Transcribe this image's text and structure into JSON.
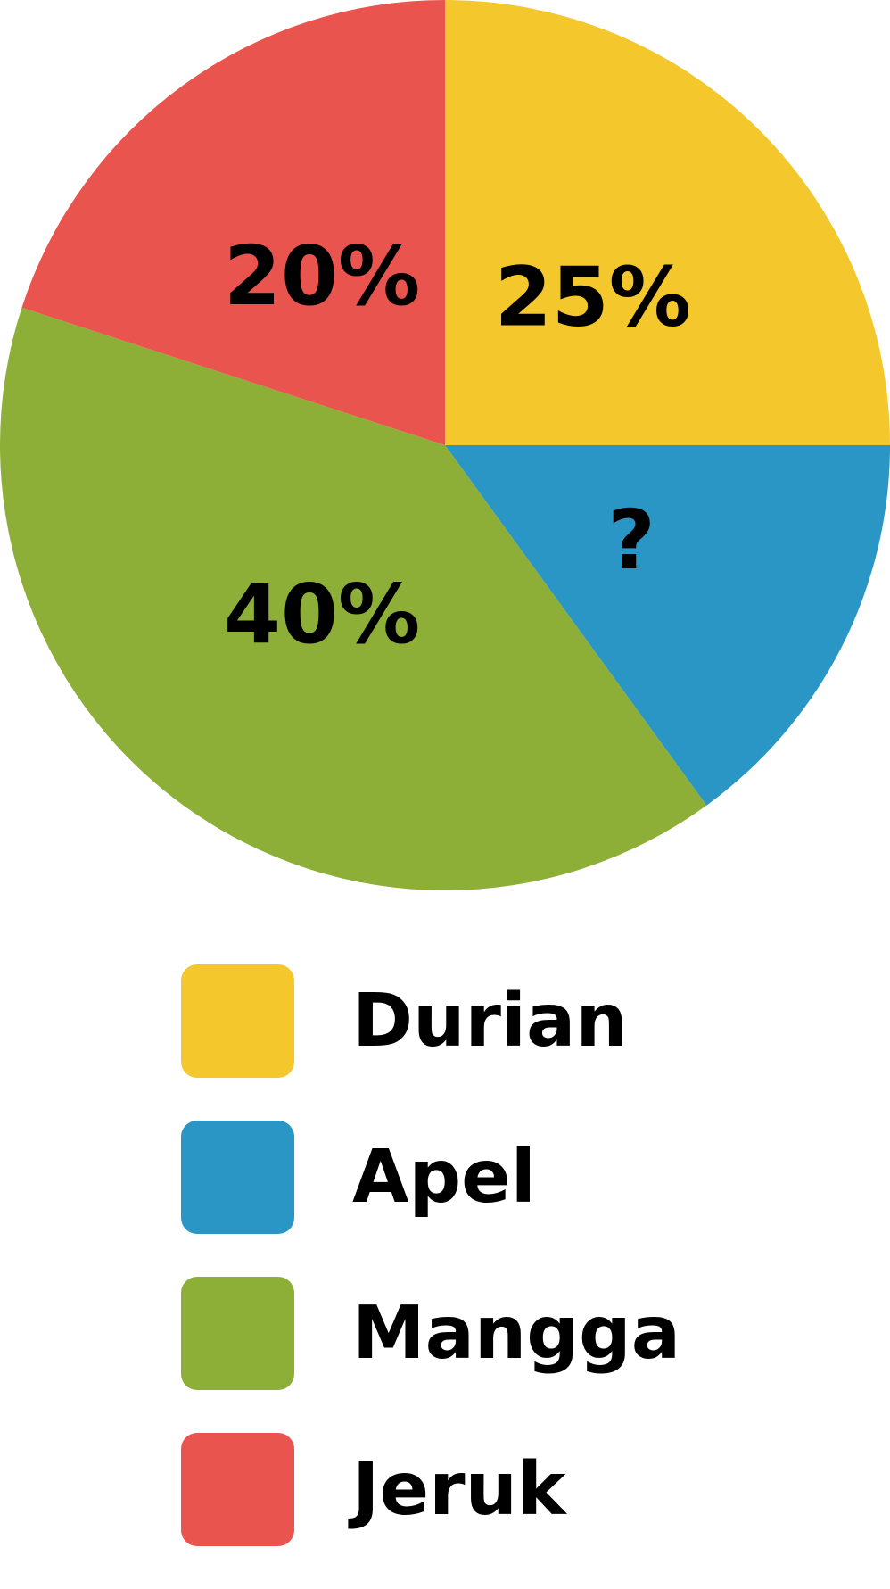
{
  "chart_data": {
    "type": "pie",
    "categories": [
      "Durian",
      "Apel",
      "Mangga",
      "Jeruk"
    ],
    "values": [
      25,
      15,
      40,
      20
    ],
    "value_labels": [
      "25%",
      "?",
      "40%",
      "20%"
    ],
    "colors": [
      "#F4C72D",
      "#2A96C5",
      "#8DAF38",
      "#E9554E"
    ],
    "start_angle_deg": 0,
    "direction": "clockwise",
    "legend_placement": "bottom"
  }
}
